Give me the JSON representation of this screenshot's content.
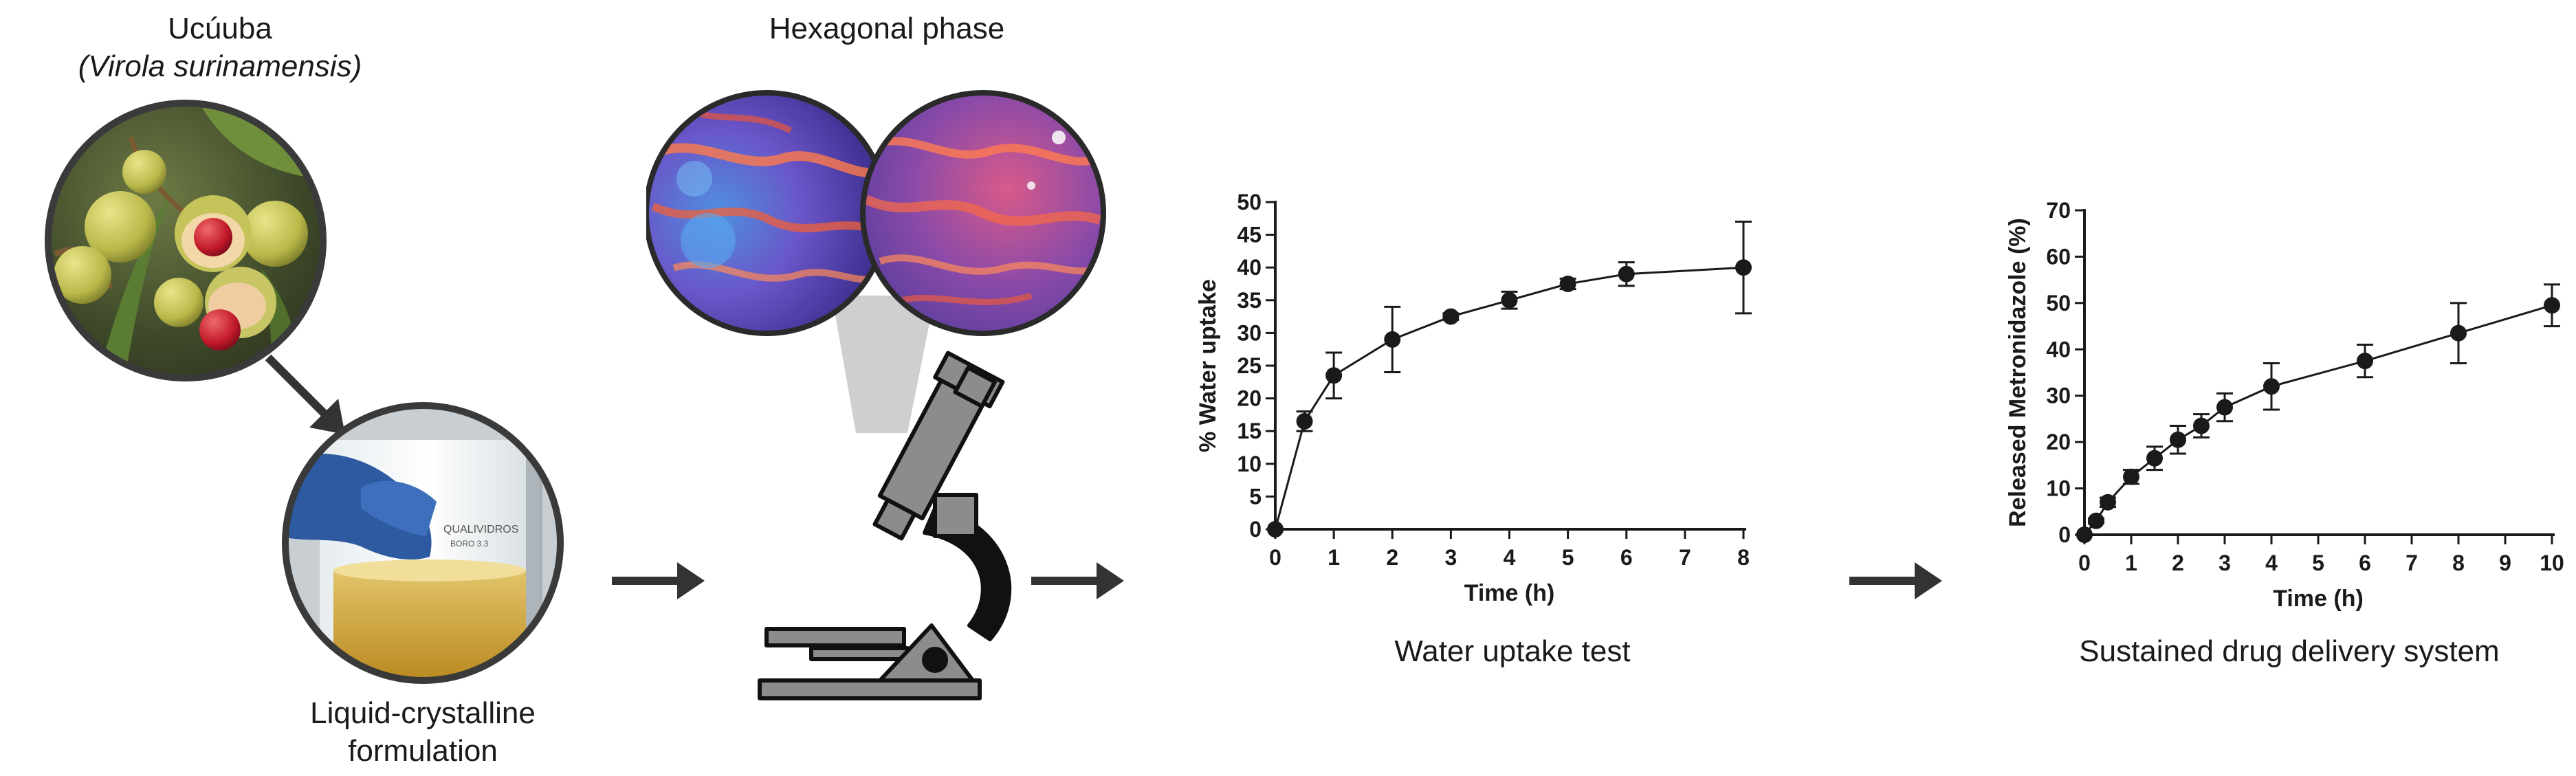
{
  "source": {
    "name": "Ucúuba",
    "species": "(Virola surinamensis)"
  },
  "formulation": {
    "line1": "Liquid-crystalline",
    "line2": "formulation",
    "beaker_text_1": "QUALIVIDROS",
    "beaker_text_2": "BORO 3.3"
  },
  "microscopy": {
    "title": "Hexagonal phase"
  },
  "water_uptake": {
    "caption": "Water uptake test"
  },
  "release": {
    "caption": "Sustained drug delivery system"
  },
  "colors": {
    "line": "#1a1a1a",
    "arrow": "#333333",
    "microscope_gray": "#8c8c8c",
    "cone": "#cfcfcf"
  },
  "chart_data": [
    {
      "type": "line",
      "title": "",
      "xlabel": "Time (h)",
      "ylabel": "% Water uptake",
      "xlim": [
        0,
        8
      ],
      "ylim": [
        0,
        50
      ],
      "xticks": [
        0,
        1,
        2,
        3,
        4,
        5,
        6,
        7,
        8
      ],
      "yticks": [
        0,
        5,
        10,
        15,
        20,
        25,
        30,
        35,
        40,
        45,
        50
      ],
      "series": [
        {
          "x": [
            0,
            0.5,
            1,
            2,
            3,
            4,
            5,
            6,
            8
          ],
          "y": [
            0,
            16.5,
            23.5,
            29,
            32.5,
            35,
            37.5,
            39,
            40
          ],
          "err": [
            0,
            1.5,
            3.5,
            5,
            0.5,
            1.3,
            0.8,
            1.8,
            7
          ]
        }
      ],
      "grid": false,
      "legend": "none"
    },
    {
      "type": "line",
      "title": "",
      "xlabel": "Time (h)",
      "ylabel": "Released Metronidazole (%)",
      "xlim": [
        0,
        10
      ],
      "ylim": [
        0,
        70
      ],
      "xticks": [
        0,
        1,
        2,
        3,
        4,
        5,
        6,
        7,
        8,
        9,
        10
      ],
      "yticks": [
        0,
        10,
        20,
        30,
        40,
        50,
        60,
        70
      ],
      "series": [
        {
          "x": [
            0,
            0.25,
            0.5,
            1,
            1.5,
            2,
            2.5,
            3,
            4,
            6,
            8,
            10
          ],
          "y": [
            0,
            3,
            7,
            12.5,
            16.5,
            20.5,
            23.5,
            27.5,
            32,
            37.5,
            43.5,
            49.5
          ],
          "err": [
            0,
            0.5,
            1,
            1.5,
            2.5,
            3,
            2.5,
            3,
            5,
            3.5,
            6.5,
            4.5
          ]
        }
      ],
      "grid": false,
      "legend": "none"
    }
  ]
}
